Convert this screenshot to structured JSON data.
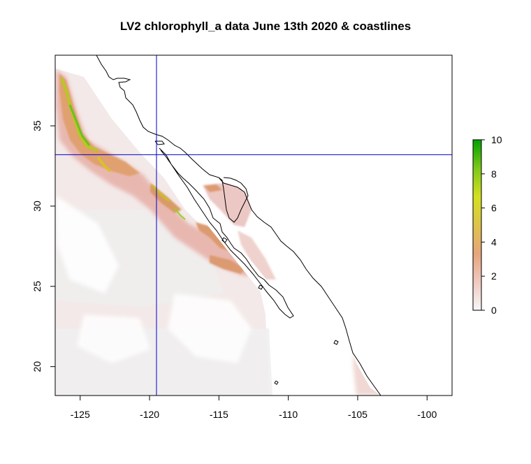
{
  "title": "LV2 chlorophyll_a data June 13th 2020 & coastlines",
  "chart_data": {
    "type": "heatmap",
    "title": "LV2 chlorophyll_a data June 13th 2020 & coastlines",
    "xlabel": "",
    "ylabel": "",
    "xlim": [
      -126.8,
      -98.2
    ],
    "ylim": [
      18.2,
      39.4
    ],
    "x_ticks": [
      -125,
      -120,
      -115,
      -110,
      -105,
      -100
    ],
    "x_tick_labels": [
      "-125",
      "-120",
      "-115",
      "-110",
      "-105",
      "-100"
    ],
    "y_ticks": [
      20,
      25,
      30,
      35
    ],
    "y_tick_labels": [
      "20",
      "25",
      "30",
      "35"
    ],
    "reference_lines": {
      "vertical_lon": -119.5,
      "horizontal_lat": 33.2,
      "color": "#0000cc"
    },
    "colorbar": {
      "min": 0,
      "max": 10,
      "ticks": [
        0,
        2,
        4,
        6,
        8,
        10
      ],
      "tick_labels": [
        "0",
        "2",
        "4",
        "6",
        "8",
        "10"
      ],
      "colors": [
        "#f7f7f7",
        "#efc9c0",
        "#e6a57c",
        "#ddc34a",
        "#d4e020",
        "#7ec81a",
        "#00a000"
      ]
    },
    "grid": false,
    "legend": "right"
  }
}
